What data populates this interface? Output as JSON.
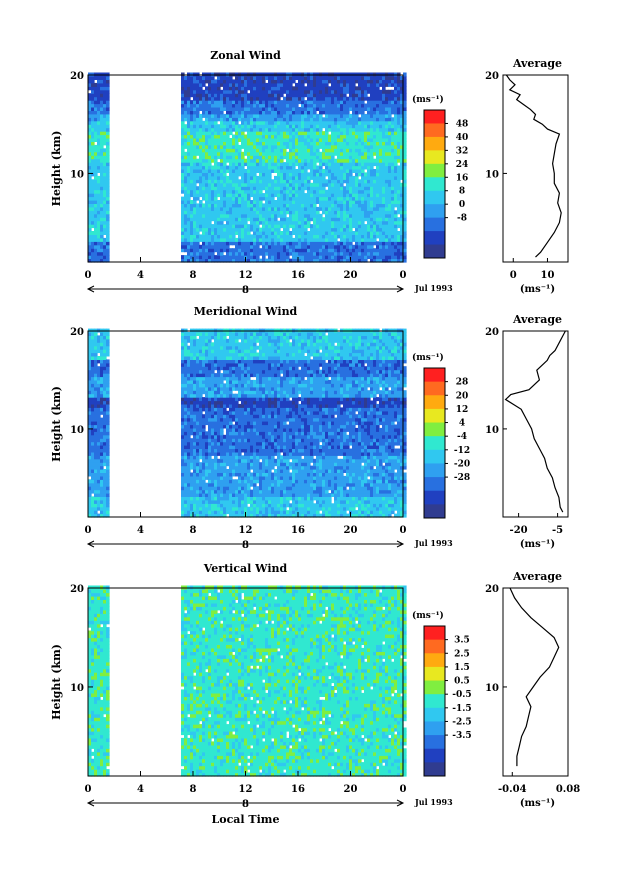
{
  "chart_data": [
    {
      "type": "heatmap",
      "title": "Zonal Wind",
      "ylabel": "Height (km)",
      "xlabel": "",
      "xlim": [
        0,
        24
      ],
      "ylim": [
        1,
        20
      ],
      "x_ticks": [
        "0",
        "4",
        "8",
        "12",
        "16",
        "20",
        "0"
      ],
      "y_ticks": [
        "20",
        "10"
      ],
      "day_marker": "8",
      "date_label": "Jul 1993",
      "data_gaps_hours": [
        [
          1.5,
          7.0
        ]
      ],
      "colorbar": {
        "unit_label": "(ms⁻¹)",
        "levels": [
          "48",
          "40",
          "32",
          "24",
          "16",
          "8",
          "0",
          "-8"
        ],
        "colors": [
          "#ff2020",
          "#ff6a20",
          "#ffaa10",
          "#e8e820",
          "#80ee40",
          "#30e8d0",
          "#30c8f0",
          "#2fa0f0",
          "#2870e0",
          "#2040c0",
          "#303c90"
        ]
      },
      "field_sketch": [
        {
          "h": [
            1,
            3
          ],
          "level": "0"
        },
        {
          "h": [
            3,
            11
          ],
          "level": "16"
        },
        {
          "h": [
            11,
            14
          ],
          "level": "24"
        },
        {
          "h": [
            14,
            15
          ],
          "level": "16"
        },
        {
          "h": [
            15,
            16
          ],
          "level": "8"
        },
        {
          "h": [
            16,
            17.3
          ],
          "level": "0"
        },
        {
          "h": [
            17.3,
            20
          ],
          "level": "-8"
        }
      ],
      "inset": {
        "title": "Average",
        "x_ticks": [
          "0",
          "10"
        ],
        "xlabel": "(ms⁻¹)",
        "y_ticks": [
          "20",
          "10"
        ],
        "xlim": [
          -3,
          16
        ],
        "profile": {
          "h": [
            1.5,
            2,
            3,
            4,
            5,
            6,
            7,
            8,
            9,
            10,
            11,
            12,
            13,
            14,
            14.5,
            15,
            15.5,
            16,
            16.5,
            17,
            17.5,
            18,
            18.5,
            19,
            19.5,
            20
          ],
          "u": [
            6.5,
            8,
            10,
            12,
            13.5,
            14,
            13,
            13.5,
            12,
            12,
            11.5,
            12,
            12.5,
            13.5,
            10,
            8.5,
            6,
            6.5,
            5,
            3,
            1,
            2,
            -1,
            0.5,
            -1,
            -2
          ]
        }
      }
    },
    {
      "type": "heatmap",
      "title": "Meridional Wind",
      "ylabel": "Height (km)",
      "xlabel": "",
      "xlim": [
        0,
        24
      ],
      "ylim": [
        1,
        20
      ],
      "x_ticks": [
        "0",
        "4",
        "8",
        "12",
        "16",
        "20",
        "0"
      ],
      "y_ticks": [
        "20",
        "10"
      ],
      "day_marker": "8",
      "date_label": "Jul 1993",
      "data_gaps_hours": [
        [
          1.5,
          7.0
        ]
      ],
      "colorbar": {
        "unit_label": "(ms⁻¹)",
        "levels": [
          "28",
          "20",
          "12",
          "4",
          "-4",
          "-12",
          "-20",
          "-28"
        ],
        "colors": [
          "#ff2020",
          "#ff6a20",
          "#ffaa10",
          "#e8e820",
          "#80ee40",
          "#30e8d0",
          "#30c8f0",
          "#2fa0f0",
          "#2870e0",
          "#2040c0",
          "#303c90"
        ]
      },
      "field_sketch": [
        {
          "h": [
            1,
            3
          ],
          "level": "-4"
        },
        {
          "h": [
            3,
            7
          ],
          "level": "-12"
        },
        {
          "h": [
            7,
            12
          ],
          "level": "-20"
        },
        {
          "h": [
            12,
            13
          ],
          "level": "-28"
        },
        {
          "h": [
            13,
            15
          ],
          "level": "-12"
        },
        {
          "h": [
            15,
            17
          ],
          "level": "-20"
        },
        {
          "h": [
            17,
            20
          ],
          "level": "-4"
        }
      ],
      "inset": {
        "title": "Average",
        "x_ticks": [
          "-20",
          "-5"
        ],
        "xlabel": "(ms⁻¹)",
        "y_ticks": [
          "20",
          "10"
        ],
        "xlim": [
          -26,
          -1
        ],
        "profile": {
          "h": [
            1.5,
            2,
            3,
            4,
            5,
            6,
            7,
            8,
            9,
            10,
            11,
            12,
            12.5,
            13,
            13.5,
            14,
            15,
            16,
            17,
            17.5,
            18,
            19,
            19.5,
            20
          ],
          "u": [
            -3,
            -4,
            -4.5,
            -6,
            -7,
            -9,
            -10,
            -12,
            -14,
            -15,
            -17,
            -19,
            -22,
            -25,
            -23,
            -16,
            -12,
            -13,
            -9,
            -8,
            -6,
            -4,
            -3,
            -2
          ]
        }
      }
    },
    {
      "type": "heatmap",
      "title": "Vertical Wind",
      "ylabel": "Height (km)",
      "xlabel": "Local Time",
      "xlim": [
        0,
        24
      ],
      "ylim": [
        1,
        20
      ],
      "x_ticks": [
        "0",
        "4",
        "8",
        "12",
        "16",
        "20",
        "0"
      ],
      "y_ticks": [
        "20",
        "10"
      ],
      "day_marker": "8",
      "date_label": "Jul 1993",
      "data_gaps_hours": [
        [
          1.5,
          7.0
        ]
      ],
      "colorbar": {
        "unit_label": "(ms⁻¹)",
        "levels": [
          "3.5",
          "2.5",
          "1.5",
          "0.5",
          "-0.5",
          "-1.5",
          "-2.5",
          "-3.5"
        ],
        "colors": [
          "#ff2020",
          "#ff6a20",
          "#ffaa10",
          "#e8e820",
          "#80ee40",
          "#30e8d0",
          "#30c8f0",
          "#2fa0f0",
          "#2870e0",
          "#2040c0",
          "#303c90"
        ]
      },
      "field_sketch": [
        {
          "h": [
            1,
            20
          ],
          "level": "0.5"
        }
      ],
      "inset": {
        "title": "Average",
        "x_ticks": [
          "-0.04",
          "0.08"
        ],
        "xlabel": "(ms⁻¹)",
        "y_ticks": [
          "20",
          "10"
        ],
        "xlim": [
          -0.06,
          0.08
        ],
        "profile": {
          "h": [
            2,
            3,
            4,
            5,
            6,
            7,
            8,
            9,
            10,
            11,
            12,
            13,
            14,
            15,
            16,
            17,
            18,
            19,
            20
          ],
          "u": [
            -0.03,
            -0.03,
            -0.025,
            -0.02,
            -0.01,
            -0.005,
            0.0,
            -0.01,
            0.005,
            0.02,
            0.04,
            0.05,
            0.06,
            0.05,
            0.025,
            0.0,
            -0.02,
            -0.035,
            -0.045
          ]
        }
      }
    }
  ]
}
